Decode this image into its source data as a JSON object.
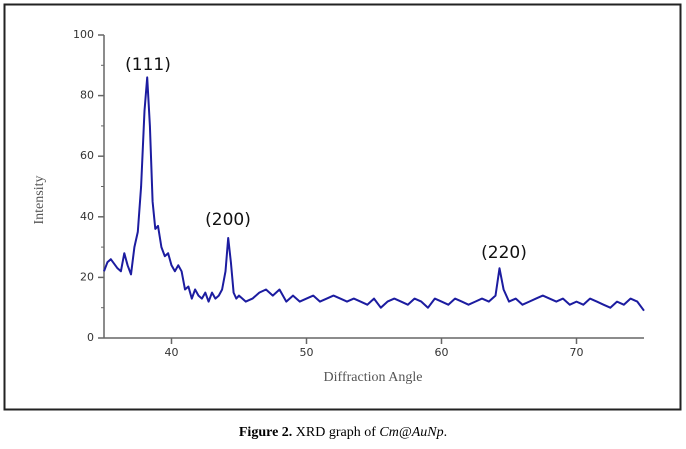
{
  "chart_data": {
    "type": "line",
    "x_label": "Diffraction Angle",
    "y_label": "Intensity",
    "annotations": [
      "(111)",
      "(200)",
      "(220)"
    ],
    "x": [
      35,
      35.25,
      35.5,
      36,
      36.25,
      36.5,
      36.75,
      37,
      37.25,
      37.5,
      37.75,
      38,
      38.2,
      38.4,
      38.6,
      38.8,
      39,
      39.25,
      39.5,
      39.75,
      40,
      40.25,
      40.5,
      40.75,
      41,
      41.25,
      41.5,
      41.75,
      42,
      42.25,
      42.5,
      42.75,
      43,
      43.25,
      43.5,
      43.75,
      44,
      44.2,
      44.4,
      44.6,
      44.8,
      45,
      45.5,
      46,
      46.5,
      47,
      47.5,
      48,
      48.5,
      49,
      49.5,
      50,
      50.5,
      51,
      51.5,
      52,
      52.5,
      53,
      53.5,
      54,
      54.5,
      55,
      55.5,
      56,
      56.5,
      57,
      57.5,
      58,
      58.5,
      59,
      59.5,
      60,
      60.5,
      61,
      61.5,
      62,
      62.5,
      63,
      63.5,
      64,
      64.3,
      64.6,
      65,
      65.5,
      66,
      66.5,
      67,
      67.5,
      68,
      68.5,
      69,
      69.5,
      70,
      70.5,
      71,
      71.5,
      72,
      72.5,
      73,
      73.5,
      74,
      74.5,
      75
    ],
    "values": [
      22,
      25,
      26,
      23,
      22,
      28,
      24,
      21,
      30,
      35,
      50,
      75,
      86,
      70,
      45,
      36,
      37,
      30,
      27,
      28,
      24,
      22,
      24,
      22,
      16,
      17,
      13,
      16,
      14,
      13,
      15,
      12,
      15,
      13,
      14,
      16,
      22,
      33,
      25,
      15,
      13,
      14,
      12,
      13,
      15,
      16,
      14,
      16,
      12,
      14,
      12,
      13,
      14,
      12,
      13,
      14,
      13,
      12,
      13,
      12,
      11,
      13,
      10,
      12,
      13,
      12,
      11,
      13,
      12,
      10,
      13,
      12,
      11,
      13,
      12,
      11,
      12,
      13,
      12,
      14,
      23,
      16,
      12,
      13,
      11,
      12,
      13,
      14,
      13,
      12,
      13,
      11,
      12,
      11,
      13,
      12,
      11,
      10,
      12,
      11,
      13,
      12,
      9
    ],
    "color": "#1c1ca0",
    "xlim": [
      35,
      75
    ],
    "xticks": [
      40,
      50,
      60,
      70
    ],
    "ylim": [
      0,
      100
    ],
    "yticks": [
      0,
      20,
      40,
      60,
      80,
      100
    ]
  },
  "caption": {
    "label": "Figure 2.",
    "text": " XRD graph of ",
    "italic": "Cm@AuNp",
    "end": "."
  }
}
